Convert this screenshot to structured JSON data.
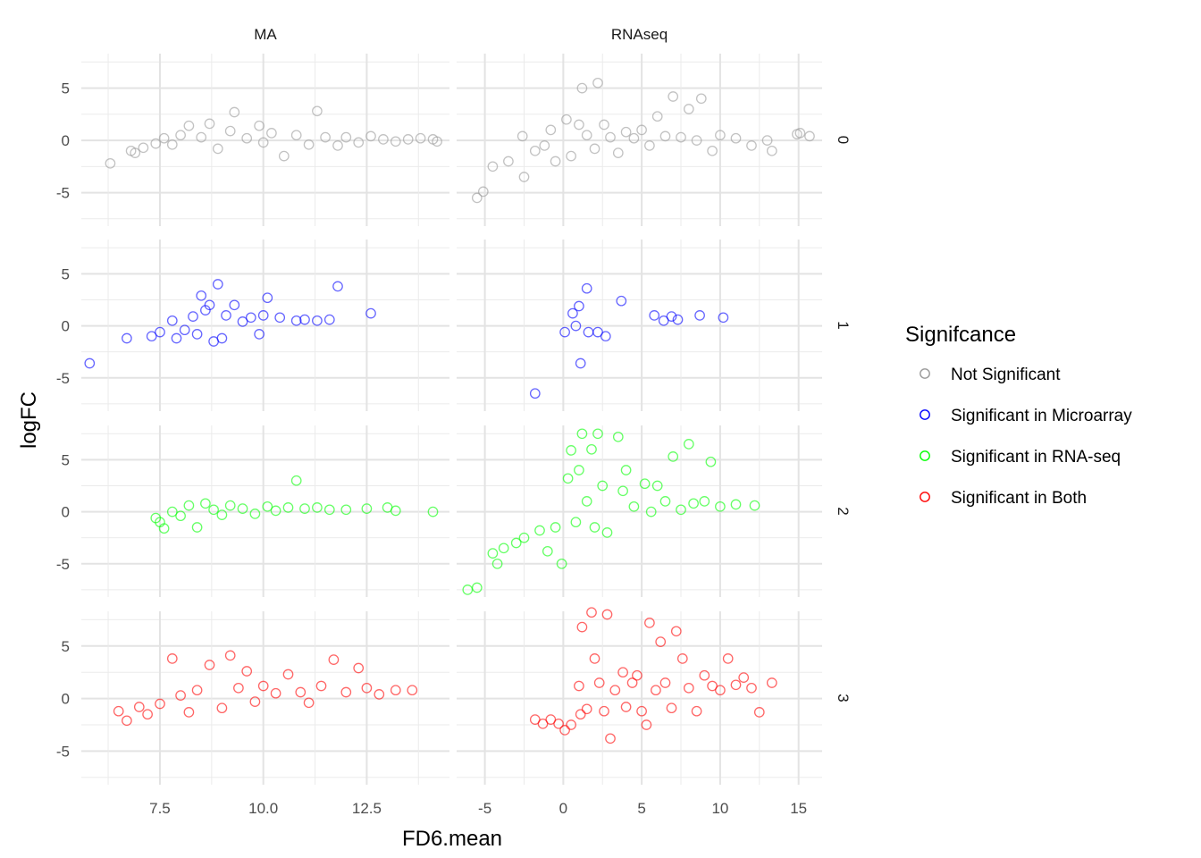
{
  "chart_data": {
    "type": "scatter",
    "facets": {
      "columns": [
        "MA",
        "RNAseq"
      ],
      "rows": [
        "0",
        "1",
        "2",
        "3"
      ]
    },
    "xlabel": "FD6.mean",
    "ylabel": "logFC",
    "xlim": {
      "MA": [
        5.6,
        14.5
      ],
      "RNAseq": [
        -6.8,
        16.5
      ]
    },
    "ylim": [
      -8.2,
      8.3
    ],
    "x_ticks": {
      "MA": [
        7.5,
        10.0,
        12.5
      ],
      "RNAseq": [
        -5,
        0,
        5,
        10,
        15
      ]
    },
    "x_tick_labels": {
      "MA": [
        "7.5",
        "10.0",
        "12.5"
      ],
      "RNAseq": [
        "-5",
        "0",
        "5",
        "10",
        "15"
      ]
    },
    "y_ticks": [
      -5,
      0,
      5
    ],
    "y_tick_labels": [
      "-5",
      "0",
      "5"
    ],
    "grid": true,
    "marker": "open-circle",
    "legend": {
      "title": "Signifcance",
      "position": "right",
      "entries": [
        {
          "label": "Not Significant",
          "color": "#999999"
        },
        {
          "label": "Significant in Microarray",
          "color": "#0000ff"
        },
        {
          "label": "Significant in RNA-seq",
          "color": "#00ff00"
        },
        {
          "label": "Significant in Both",
          "color": "#ff0000"
        }
      ]
    },
    "panels": [
      {
        "column": "MA",
        "row": "0",
        "color": "#999999",
        "points": [
          [
            6.3,
            -2.2
          ],
          [
            6.8,
            -1.0
          ],
          [
            6.9,
            -1.2
          ],
          [
            7.1,
            -0.7
          ],
          [
            7.4,
            -0.3
          ],
          [
            7.6,
            0.2
          ],
          [
            7.8,
            -0.4
          ],
          [
            8.0,
            0.5
          ],
          [
            8.2,
            1.4
          ],
          [
            8.5,
            0.3
          ],
          [
            8.7,
            1.6
          ],
          [
            8.9,
            -0.8
          ],
          [
            9.2,
            0.9
          ],
          [
            9.3,
            2.7
          ],
          [
            9.6,
            0.2
          ],
          [
            9.9,
            1.4
          ],
          [
            10.0,
            -0.2
          ],
          [
            10.2,
            0.7
          ],
          [
            10.5,
            -1.5
          ],
          [
            10.8,
            0.5
          ],
          [
            11.1,
            -0.4
          ],
          [
            11.3,
            2.8
          ],
          [
            11.5,
            0.3
          ],
          [
            11.8,
            -0.5
          ],
          [
            12.0,
            0.3
          ],
          [
            12.3,
            -0.2
          ],
          [
            12.6,
            0.4
          ],
          [
            12.9,
            0.1
          ],
          [
            13.2,
            -0.1
          ],
          [
            13.5,
            0.1
          ],
          [
            13.8,
            0.2
          ],
          [
            14.1,
            0.1
          ],
          [
            14.2,
            -0.1
          ]
        ]
      },
      {
        "column": "MA",
        "row": "1",
        "color": "#0000ff",
        "points": [
          [
            5.8,
            -3.6
          ],
          [
            6.7,
            -1.2
          ],
          [
            7.3,
            -1.0
          ],
          [
            7.5,
            -0.6
          ],
          [
            7.8,
            0.5
          ],
          [
            7.9,
            -1.2
          ],
          [
            8.1,
            -0.4
          ],
          [
            8.3,
            0.9
          ],
          [
            8.4,
            -0.8
          ],
          [
            8.5,
            2.9
          ],
          [
            8.6,
            1.5
          ],
          [
            8.7,
            2.0
          ],
          [
            8.8,
            -1.5
          ],
          [
            8.9,
            4.0
          ],
          [
            9.0,
            -1.2
          ],
          [
            9.1,
            1.0
          ],
          [
            9.3,
            2.0
          ],
          [
            9.5,
            0.4
          ],
          [
            9.7,
            0.8
          ],
          [
            9.9,
            -0.8
          ],
          [
            10.0,
            1.0
          ],
          [
            10.1,
            2.7
          ],
          [
            10.4,
            0.8
          ],
          [
            10.8,
            0.5
          ],
          [
            11.0,
            0.6
          ],
          [
            11.3,
            0.5
          ],
          [
            11.6,
            0.6
          ],
          [
            11.8,
            3.8
          ],
          [
            12.6,
            1.2
          ]
        ]
      },
      {
        "column": "MA",
        "row": "2",
        "color": "#00ff00",
        "points": [
          [
            7.4,
            -0.6
          ],
          [
            7.5,
            -1.0
          ],
          [
            7.6,
            -1.6
          ],
          [
            7.8,
            0.0
          ],
          [
            8.0,
            -0.4
          ],
          [
            8.2,
            0.6
          ],
          [
            8.4,
            -1.5
          ],
          [
            8.6,
            0.8
          ],
          [
            8.8,
            0.2
          ],
          [
            9.0,
            -0.3
          ],
          [
            9.2,
            0.6
          ],
          [
            9.5,
            0.3
          ],
          [
            9.8,
            -0.2
          ],
          [
            10.1,
            0.5
          ],
          [
            10.3,
            0.1
          ],
          [
            10.6,
            0.4
          ],
          [
            10.8,
            3.0
          ],
          [
            11.0,
            0.3
          ],
          [
            11.3,
            0.4
          ],
          [
            11.6,
            0.2
          ],
          [
            12.0,
            0.2
          ],
          [
            12.5,
            0.3
          ],
          [
            13.0,
            0.4
          ],
          [
            13.2,
            0.1
          ],
          [
            14.1,
            0.0
          ]
        ]
      },
      {
        "column": "MA",
        "row": "3",
        "color": "#ff0000",
        "points": [
          [
            6.5,
            -1.2
          ],
          [
            6.7,
            -2.1
          ],
          [
            7.0,
            -0.8
          ],
          [
            7.2,
            -1.5
          ],
          [
            7.5,
            -0.5
          ],
          [
            7.8,
            3.8
          ],
          [
            8.0,
            0.3
          ],
          [
            8.2,
            -1.3
          ],
          [
            8.4,
            0.8
          ],
          [
            8.7,
            3.2
          ],
          [
            9.0,
            -0.9
          ],
          [
            9.2,
            4.1
          ],
          [
            9.4,
            1.0
          ],
          [
            9.6,
            2.6
          ],
          [
            9.8,
            -0.3
          ],
          [
            10.0,
            1.2
          ],
          [
            10.3,
            0.5
          ],
          [
            10.6,
            2.3
          ],
          [
            10.9,
            0.6
          ],
          [
            11.1,
            -0.4
          ],
          [
            11.4,
            1.2
          ],
          [
            11.7,
            3.7
          ],
          [
            12.0,
            0.6
          ],
          [
            12.3,
            2.9
          ],
          [
            12.5,
            1.0
          ],
          [
            12.8,
            0.4
          ],
          [
            13.2,
            0.8
          ],
          [
            13.6,
            0.8
          ]
        ]
      },
      {
        "column": "RNAseq",
        "row": "0",
        "color": "#999999",
        "points": [
          [
            -5.5,
            -5.5
          ],
          [
            -5.1,
            -4.9
          ],
          [
            -4.5,
            -2.5
          ],
          [
            -3.5,
            -2.0
          ],
          [
            -2.6,
            0.4
          ],
          [
            -2.5,
            -3.5
          ],
          [
            -1.8,
            -1.0
          ],
          [
            -1.2,
            -0.5
          ],
          [
            -0.8,
            1.0
          ],
          [
            -0.5,
            -2.0
          ],
          [
            0.2,
            2.0
          ],
          [
            0.5,
            -1.5
          ],
          [
            1.0,
            1.5
          ],
          [
            1.2,
            5.0
          ],
          [
            1.5,
            0.5
          ],
          [
            2.0,
            -0.8
          ],
          [
            2.2,
            5.5
          ],
          [
            2.6,
            1.5
          ],
          [
            3.0,
            0.3
          ],
          [
            3.5,
            -1.2
          ],
          [
            4.0,
            0.8
          ],
          [
            4.5,
            0.2
          ],
          [
            5.0,
            1.0
          ],
          [
            5.5,
            -0.5
          ],
          [
            6.0,
            2.3
          ],
          [
            6.5,
            0.4
          ],
          [
            7.0,
            4.2
          ],
          [
            7.5,
            0.3
          ],
          [
            8.0,
            3.0
          ],
          [
            8.5,
            0.0
          ],
          [
            8.8,
            4.0
          ],
          [
            9.5,
            -1.0
          ],
          [
            10.0,
            0.5
          ],
          [
            11.0,
            0.2
          ],
          [
            12.0,
            -0.5
          ],
          [
            13.0,
            0.0
          ],
          [
            13.3,
            -1.0
          ],
          [
            14.9,
            0.6
          ],
          [
            15.1,
            0.7
          ],
          [
            15.7,
            0.4
          ]
        ]
      },
      {
        "column": "RNAseq",
        "row": "1",
        "color": "#0000ff",
        "points": [
          [
            -1.8,
            -6.5
          ],
          [
            0.1,
            -0.6
          ],
          [
            0.6,
            1.2
          ],
          [
            0.8,
            0.0
          ],
          [
            1.0,
            1.9
          ],
          [
            1.1,
            -3.6
          ],
          [
            1.5,
            3.6
          ],
          [
            1.6,
            -0.6
          ],
          [
            2.2,
            -0.6
          ],
          [
            2.7,
            -1.0
          ],
          [
            3.7,
            2.4
          ],
          [
            5.8,
            1.0
          ],
          [
            6.4,
            0.5
          ],
          [
            6.9,
            0.9
          ],
          [
            7.3,
            0.6
          ],
          [
            8.7,
            1.0
          ],
          [
            10.2,
            0.8
          ]
        ]
      },
      {
        "column": "RNAseq",
        "row": "2",
        "color": "#00ff00",
        "points": [
          [
            -6.1,
            -7.5
          ],
          [
            -5.5,
            -7.3
          ],
          [
            -4.5,
            -4.0
          ],
          [
            -4.2,
            -5.0
          ],
          [
            -3.8,
            -3.5
          ],
          [
            -3.0,
            -3.0
          ],
          [
            -2.5,
            -2.5
          ],
          [
            -1.5,
            -1.8
          ],
          [
            -1.0,
            -3.8
          ],
          [
            -0.5,
            -1.5
          ],
          [
            -0.1,
            -5.0
          ],
          [
            0.3,
            3.2
          ],
          [
            0.5,
            5.9
          ],
          [
            0.8,
            -1.0
          ],
          [
            1.0,
            4.0
          ],
          [
            1.2,
            7.5
          ],
          [
            1.5,
            1.0
          ],
          [
            1.8,
            6.0
          ],
          [
            2.0,
            -1.5
          ],
          [
            2.2,
            7.5
          ],
          [
            2.5,
            2.5
          ],
          [
            2.8,
            -2.0
          ],
          [
            3.5,
            7.2
          ],
          [
            3.8,
            2.0
          ],
          [
            4.0,
            4.0
          ],
          [
            4.5,
            0.5
          ],
          [
            5.2,
            2.7
          ],
          [
            5.6,
            0.0
          ],
          [
            6.0,
            2.5
          ],
          [
            6.5,
            1.0
          ],
          [
            7.0,
            5.3
          ],
          [
            7.5,
            0.2
          ],
          [
            8.0,
            6.5
          ],
          [
            8.3,
            0.8
          ],
          [
            9.0,
            1.0
          ],
          [
            9.4,
            4.8
          ],
          [
            10.0,
            0.5
          ],
          [
            11.0,
            0.7
          ],
          [
            12.2,
            0.6
          ]
        ]
      },
      {
        "column": "RNAseq",
        "row": "3",
        "color": "#ff0000",
        "points": [
          [
            -1.8,
            -2.0
          ],
          [
            -1.3,
            -2.4
          ],
          [
            -0.8,
            -2.0
          ],
          [
            -0.3,
            -2.4
          ],
          [
            0.1,
            -3.0
          ],
          [
            0.5,
            -2.5
          ],
          [
            1.0,
            1.2
          ],
          [
            1.1,
            -1.5
          ],
          [
            1.2,
            6.8
          ],
          [
            1.5,
            -1.0
          ],
          [
            1.8,
            8.2
          ],
          [
            2.0,
            3.8
          ],
          [
            2.3,
            1.5
          ],
          [
            2.6,
            -1.2
          ],
          [
            2.8,
            8.0
          ],
          [
            3.0,
            -3.8
          ],
          [
            3.3,
            0.8
          ],
          [
            3.8,
            2.5
          ],
          [
            4.0,
            -0.8
          ],
          [
            4.4,
            1.5
          ],
          [
            4.7,
            2.2
          ],
          [
            5.0,
            -1.2
          ],
          [
            5.3,
            -2.5
          ],
          [
            5.5,
            7.2
          ],
          [
            5.9,
            0.8
          ],
          [
            6.2,
            5.4
          ],
          [
            6.5,
            1.5
          ],
          [
            6.9,
            -0.9
          ],
          [
            7.2,
            6.4
          ],
          [
            7.6,
            3.8
          ],
          [
            8.0,
            1.0
          ],
          [
            8.5,
            -1.2
          ],
          [
            9.0,
            2.2
          ],
          [
            9.5,
            1.2
          ],
          [
            10.0,
            0.8
          ],
          [
            10.5,
            3.8
          ],
          [
            11.0,
            1.3
          ],
          [
            11.5,
            2.0
          ],
          [
            12.0,
            1.0
          ],
          [
            12.5,
            -1.3
          ],
          [
            13.3,
            1.5
          ]
        ]
      }
    ]
  }
}
